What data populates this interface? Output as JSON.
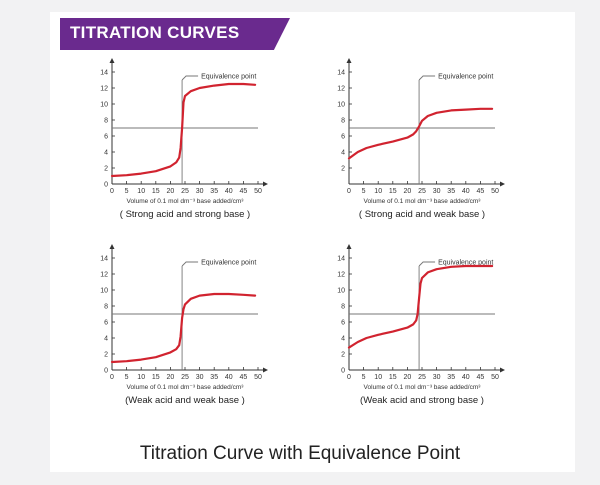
{
  "header": {
    "banner": "TITRATION CURVES"
  },
  "footer": {
    "caption": "Titration Curve with Equivalence Point"
  },
  "colors": {
    "banner": "#6a2a8e",
    "curve": "#d1232f",
    "axis": "#333333",
    "line": "#777777"
  },
  "chart_data": [
    {
      "type": "line",
      "title": "( Strong acid and strong base )",
      "xlabel": "Volume of 0.1 mol dm⁻³ base added/cm³",
      "ylabel": "",
      "annotation": "Equivalence point",
      "xlim": [
        0,
        50
      ],
      "ylim": [
        0,
        14
      ],
      "xticks": [
        0,
        5,
        10,
        15,
        20,
        25,
        30,
        35,
        40,
        45,
        50
      ],
      "yticks": [
        0,
        2,
        4,
        6,
        8,
        10,
        12,
        14
      ],
      "equivalence_x": 24,
      "reference_y": 7,
      "x": [
        0,
        5,
        10,
        15,
        20,
        22,
        23,
        23.5,
        24,
        24.5,
        25,
        27,
        30,
        35,
        40,
        45,
        49
      ],
      "y": [
        1.0,
        1.1,
        1.3,
        1.6,
        2.2,
        2.7,
        3.3,
        4.5,
        7.0,
        10.2,
        11.0,
        11.6,
        12.0,
        12.3,
        12.5,
        12.5,
        12.4
      ]
    },
    {
      "type": "line",
      "title": "( Strong acid and weak base )",
      "xlabel": "Volume of 0.1 mol dm⁻³ base added/cm³",
      "ylabel": "",
      "annotation": "Equivalence point",
      "xlim": [
        0,
        50
      ],
      "ylim": [
        0,
        14
      ],
      "xticks": [
        0,
        5,
        10,
        15,
        20,
        25,
        30,
        35,
        40,
        45,
        50
      ],
      "yticks": [
        2,
        4,
        6,
        8,
        10,
        12,
        14
      ],
      "equivalence_x": 24,
      "reference_y": 7,
      "x": [
        0,
        3,
        6,
        10,
        15,
        20,
        22,
        23,
        24,
        25,
        27,
        30,
        35,
        40,
        45,
        49
      ],
      "y": [
        3.2,
        4.0,
        4.5,
        4.9,
        5.3,
        5.8,
        6.2,
        6.6,
        7.2,
        7.9,
        8.5,
        8.9,
        9.2,
        9.3,
        9.4,
        9.4
      ]
    },
    {
      "type": "line",
      "title": "(Weak acid and weak base )",
      "xlabel": "Volume of 0.1 mol dm⁻³ base added/cm³",
      "ylabel": "",
      "annotation": "Equivalence point",
      "xlim": [
        0,
        50
      ],
      "ylim": [
        0,
        14
      ],
      "xticks": [
        0,
        5,
        10,
        15,
        20,
        25,
        30,
        35,
        40,
        45,
        50
      ],
      "yticks": [
        0,
        2,
        4,
        6,
        8,
        10,
        12,
        14
      ],
      "equivalence_x": 24,
      "reference_y": 7,
      "x": [
        0,
        5,
        10,
        15,
        20,
        22,
        23,
        23.5,
        24,
        24.5,
        25,
        27,
        30,
        35,
        40,
        45,
        49
      ],
      "y": [
        1.0,
        1.1,
        1.3,
        1.6,
        2.2,
        2.6,
        3.1,
        4.2,
        6.5,
        7.6,
        8.2,
        8.9,
        9.3,
        9.5,
        9.5,
        9.4,
        9.3
      ]
    },
    {
      "type": "line",
      "title": "(Weak acid and strong base )",
      "xlabel": "Volume of 0.1 mol dm⁻³ base added/cm³",
      "ylabel": "",
      "annotation": "Equivalence point",
      "xlim": [
        0,
        50
      ],
      "ylim": [
        0,
        14
      ],
      "xticks": [
        0,
        5,
        10,
        15,
        20,
        25,
        30,
        35,
        40,
        45,
        50
      ],
      "yticks": [
        0,
        2,
        4,
        6,
        8,
        10,
        12,
        14
      ],
      "equivalence_x": 24,
      "reference_y": 7,
      "x": [
        0,
        3,
        6,
        10,
        15,
        20,
        22,
        23,
        23.5,
        24,
        24.5,
        25,
        27,
        30,
        35,
        40,
        45,
        49
      ],
      "y": [
        2.8,
        3.5,
        4.0,
        4.4,
        4.8,
        5.3,
        5.7,
        6.2,
        7.0,
        9.0,
        10.8,
        11.5,
        12.2,
        12.6,
        12.9,
        13.0,
        13.0,
        13.0
      ]
    }
  ]
}
